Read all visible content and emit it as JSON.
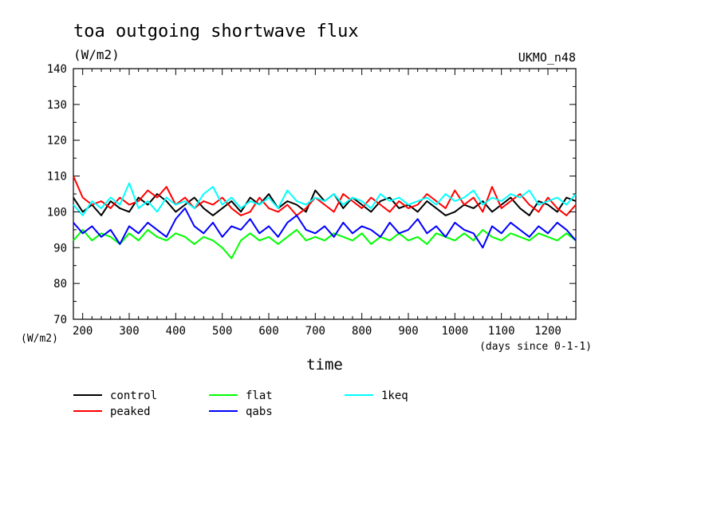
{
  "chart_data": {
    "type": "line",
    "title": "toa outgoing shortwave flux",
    "subtitle": "(W/m2)",
    "model_label": "UKMO_n48",
    "xlabel": "time",
    "xunits": "(days since 0-1-1)",
    "ylabel": "(W/m2)",
    "xlim": [
      180,
      1260
    ],
    "ylim": [
      70,
      140
    ],
    "x_ticks": [
      200,
      300,
      400,
      500,
      600,
      700,
      800,
      900,
      1000,
      1100,
      1200
    ],
    "x_tick_labels": [
      "200",
      "300",
      "400",
      "500",
      "600",
      "700",
      "800",
      "900",
      "1000",
      "1100",
      "1200"
    ],
    "y_ticks": [
      70,
      80,
      90,
      100,
      110,
      120,
      130,
      140
    ],
    "y_tick_labels": [
      "70",
      "80",
      "90",
      "100",
      "110",
      "120",
      "130",
      "140"
    ],
    "grid": false,
    "legend_position": "bottom",
    "x": [
      180,
      200,
      220,
      240,
      260,
      280,
      300,
      320,
      340,
      360,
      380,
      400,
      420,
      440,
      460,
      480,
      500,
      520,
      540,
      560,
      580,
      600,
      620,
      640,
      660,
      680,
      700,
      720,
      740,
      760,
      780,
      800,
      820,
      840,
      860,
      880,
      900,
      920,
      940,
      960,
      980,
      1000,
      1020,
      1040,
      1060,
      1080,
      1100,
      1120,
      1140,
      1160,
      1180,
      1200,
      1220,
      1240,
      1260
    ],
    "series": [
      {
        "name": "control",
        "color": "#000000",
        "values": [
          104,
          100,
          102,
          99,
          103,
          101,
          100,
          104,
          102,
          105,
          103,
          100,
          102,
          104,
          101,
          99,
          101,
          103,
          100,
          104,
          102,
          105,
          101,
          103,
          102,
          100,
          106,
          103,
          105,
          101,
          104,
          102,
          100,
          103,
          104,
          101,
          102,
          100,
          103,
          101,
          99,
          100,
          102,
          101,
          103,
          100,
          102,
          104,
          101,
          99,
          103,
          102,
          100,
          104,
          103
        ]
      },
      {
        "name": "peaked",
        "color": "#ff0000",
        "values": [
          110,
          104,
          102,
          103,
          101,
          104,
          102,
          103,
          106,
          104,
          107,
          102,
          104,
          101,
          103,
          102,
          104,
          101,
          99,
          100,
          104,
          101,
          100,
          102,
          99,
          101,
          104,
          102,
          100,
          105,
          103,
          101,
          104,
          102,
          100,
          103,
          101,
          102,
          105,
          103,
          101,
          106,
          102,
          104,
          100,
          107,
          101,
          103,
          105,
          102,
          100,
          104,
          101,
          99,
          102
        ]
      },
      {
        "name": "flat",
        "color": "#00ff00",
        "values": [
          92,
          95,
          92,
          94,
          93,
          91,
          94,
          92,
          95,
          93,
          92,
          94,
          93,
          91,
          93,
          92,
          90,
          87,
          92,
          94,
          92,
          93,
          91,
          93,
          95,
          92,
          93,
          92,
          94,
          93,
          92,
          94,
          91,
          93,
          92,
          94,
          92,
          93,
          91,
          94,
          93,
          92,
          94,
          92,
          95,
          93,
          92,
          94,
          93,
          92,
          94,
          93,
          92,
          94,
          92
        ]
      },
      {
        "name": "qabs",
        "color": "#0000ff",
        "values": [
          97,
          94,
          96,
          93,
          95,
          91,
          96,
          94,
          97,
          95,
          93,
          98,
          101,
          96,
          94,
          97,
          93,
          96,
          95,
          98,
          94,
          96,
          93,
          97,
          99,
          95,
          94,
          96,
          93,
          97,
          94,
          96,
          95,
          93,
          97,
          94,
          95,
          98,
          94,
          96,
          93,
          97,
          95,
          94,
          90,
          96,
          94,
          97,
          95,
          93,
          96,
          94,
          97,
          95,
          92
        ]
      },
      {
        "name": "1keq",
        "color": "#00ffff",
        "values": [
          102,
          99,
          103,
          101,
          104,
          102,
          108,
          101,
          103,
          100,
          104,
          102,
          103,
          101,
          105,
          107,
          102,
          104,
          101,
          103,
          102,
          104,
          101,
          106,
          103,
          102,
          104,
          103,
          105,
          102,
          104,
          103,
          101,
          105,
          103,
          104,
          102,
          103,
          104,
          102,
          105,
          103,
          104,
          106,
          102,
          104,
          103,
          105,
          104,
          106,
          102,
          103,
          104,
          102,
          105
        ]
      }
    ]
  }
}
